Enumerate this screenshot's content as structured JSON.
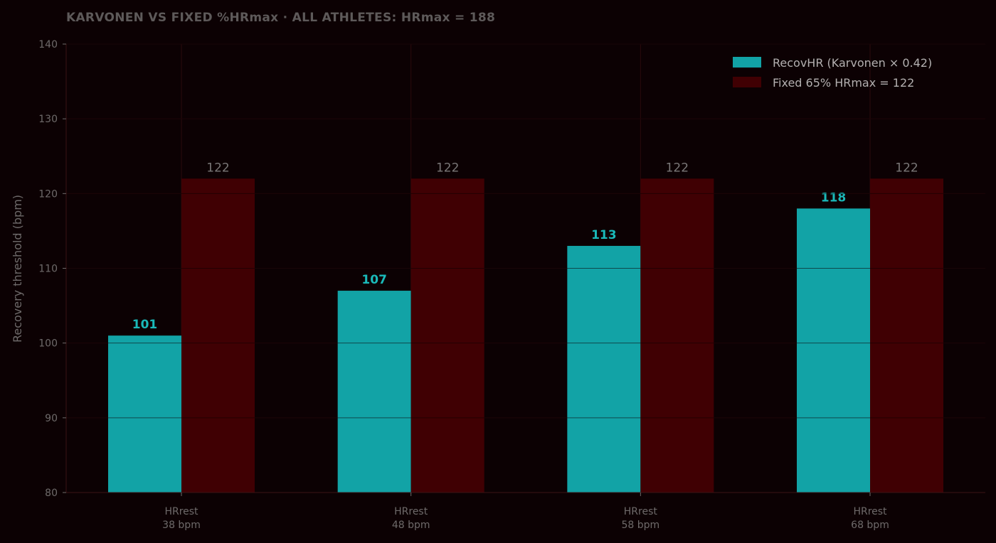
{
  "chart_data": {
    "type": "bar",
    "title": "KARVONEN VS FIXED %HRmax  ·  ALL ATHLETES: HRmax = 188",
    "ylabel": "Recovery threshold (bpm)",
    "xlabel": "",
    "ylim": [
      80,
      140
    ],
    "yticks": [
      80,
      90,
      100,
      110,
      120,
      130,
      140
    ],
    "categories": [
      [
        "HRrest",
        "38 bpm"
      ],
      [
        "HRrest",
        "48 bpm"
      ],
      [
        "HRrest",
        "58 bpm"
      ],
      [
        "HRrest",
        "68 bpm"
      ]
    ],
    "series": [
      {
        "name": "RecovHR (Karvonen × 0.42)",
        "values": [
          101,
          107,
          113,
          118
        ],
        "color": "#12a3a6",
        "label_color": "#1ab9b9"
      },
      {
        "name": "Fixed 65% HRmax = 122",
        "values": [
          122,
          122,
          122,
          122
        ],
        "color": "#400003",
        "label_color": "#7a7777"
      }
    ],
    "legend_position": "top-right",
    "grid": true,
    "colors": {
      "background": "#0c0103",
      "grid": "#2a0a0c",
      "axis": "#3a1416"
    }
  }
}
